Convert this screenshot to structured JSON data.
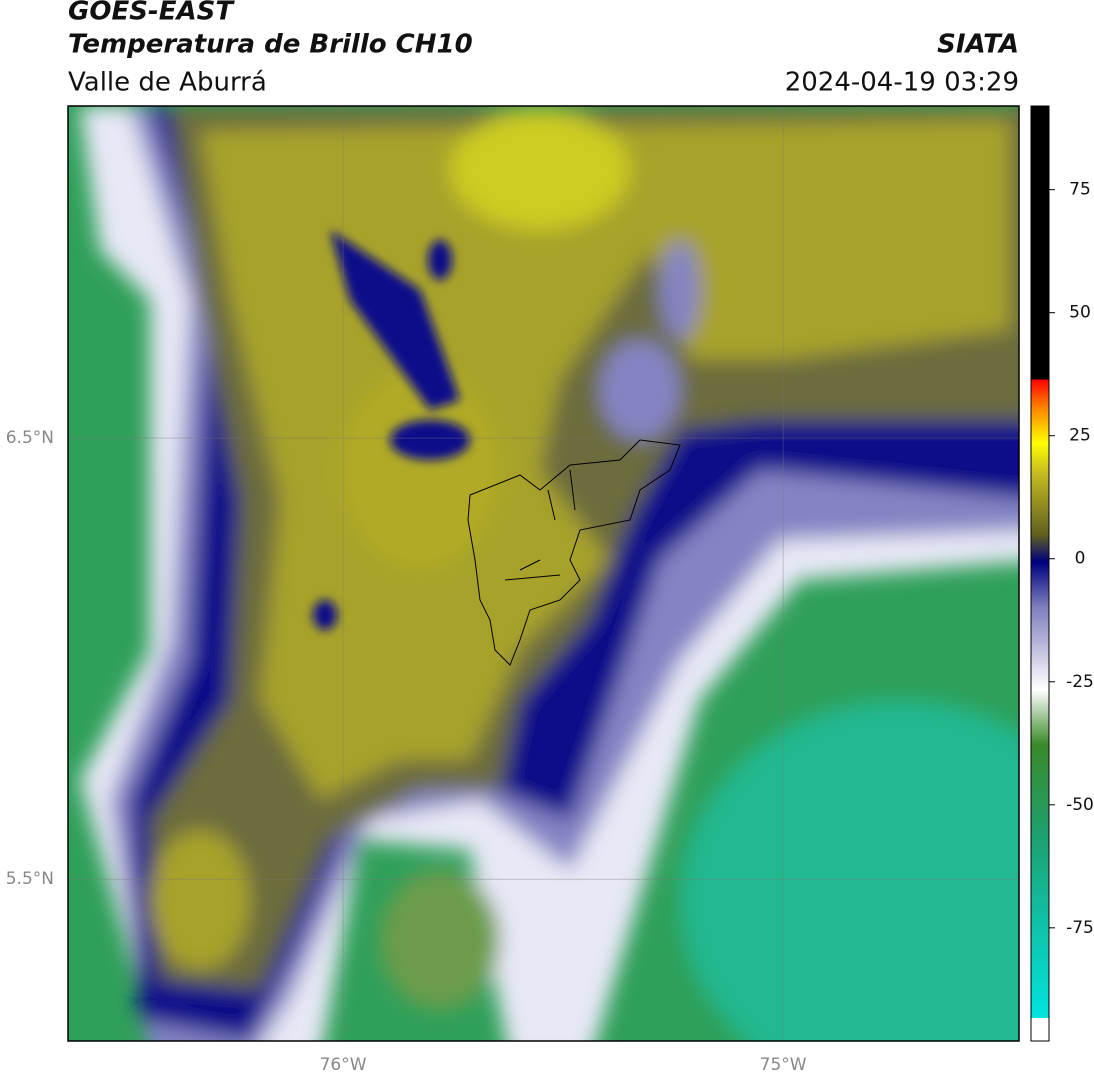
{
  "header": {
    "title_line1": "GOES-EAST",
    "title_line2": "Temperatura de Brillo CH10",
    "subtitle": "Valle de Aburrá",
    "source": "SIATA",
    "timestamp": "2024-04-19 03:29"
  },
  "map": {
    "xlim": [
      -76.625,
      -74.464
    ],
    "ylim": [
      5.133,
      7.253
    ],
    "xticks": [
      {
        "value": -76,
        "label": "76°W"
      },
      {
        "value": -75,
        "label": "75°W"
      }
    ],
    "yticks": [
      {
        "value": 6.5,
        "label": "6.5°N"
      },
      {
        "value": 5.5,
        "label": "5.5°N"
      }
    ],
    "grid": true
  },
  "colorbar": {
    "lim": [
      -98,
      92
    ],
    "ticks": [
      75,
      50,
      25,
      0,
      -25,
      -50,
      -75
    ]
  }
}
